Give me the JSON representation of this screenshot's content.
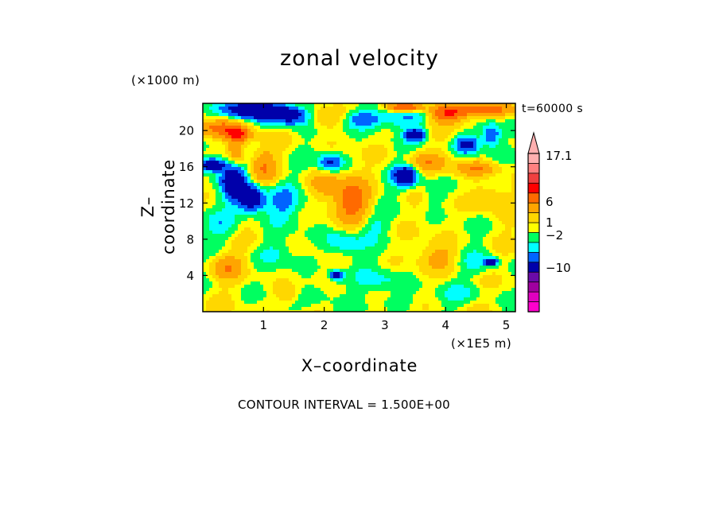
{
  "title": "zonal velocity",
  "y_unit": "(×1000 m)",
  "x_unit": "(×1E5 m)",
  "time_label": "t=60000 s",
  "xlabel": "X–coordinate",
  "ylabel": "Z–coordinate",
  "contour_note": "CONTOUR INTERVAL = 1.500E+00",
  "chart_data": {
    "type": "heatmap",
    "title": "zonal velocity",
    "xlabel": "X–coordinate",
    "ylabel": "Z–coordinate",
    "x_unit": "(×1E5 m)",
    "y_unit": "(×1000 m)",
    "xlim": [
      0,
      5.15
    ],
    "ylim": [
      0,
      23
    ],
    "x_ticks": [
      1,
      2,
      3,
      4,
      5
    ],
    "y_ticks": [
      4,
      8,
      12,
      16,
      20
    ],
    "time": "t=60000 s",
    "contour_interval": "1.500E+00",
    "colorbar_labels": [
      "17.1",
      "6",
      "1",
      "−2",
      "−10"
    ],
    "colorbar_label_values": [
      17.1,
      6,
      1,
      -2,
      -10
    ],
    "colorbar_colors": [
      "#ffb0b0",
      "#ff8080",
      "#f04040",
      "#ff0000",
      "#ff6a00",
      "#ffa500",
      "#ffd700",
      "#ffff00",
      "#00ff60",
      "#00ffff",
      "#0064ff",
      "#0000aa",
      "#6a0aa8",
      "#a000a0",
      "#e000c0",
      "#ff00cc"
    ],
    "colormap": [
      {
        "value": 10,
        "color": "#ff8080"
      },
      {
        "value": 6,
        "color": "#ff0000"
      },
      {
        "value": 4,
        "color": "#ff6a00"
      },
      {
        "value": 2,
        "color": "#ffa500"
      },
      {
        "value": 0.75,
        "color": "#ffd700"
      },
      {
        "value": 0,
        "color": "#ffff00"
      },
      {
        "value": -1,
        "color": "#00ff60"
      },
      {
        "value": -2,
        "color": "#00ffff"
      },
      {
        "value": -3.5,
        "color": "#0064ff"
      },
      {
        "value": -99,
        "color": "#0000aa"
      }
    ],
    "features": [
      {
        "x": 0.8,
        "z": 22.3,
        "sx": 0.45,
        "sz": 0.9,
        "v": -7
      },
      {
        "x": 1.45,
        "z": 21.7,
        "sx": 0.4,
        "sz": 1.2,
        "v": -6
      },
      {
        "x": 0.3,
        "z": 20.2,
        "sx": 0.4,
        "sz": 1.0,
        "v": 4.5
      },
      {
        "x": 0.6,
        "z": 19.5,
        "sx": 0.2,
        "sz": 0.8,
        "v": 5
      },
      {
        "x": 1.9,
        "z": 21.5,
        "sx": 0.35,
        "sz": 1.3,
        "v": 3
      },
      {
        "x": 2.6,
        "z": 21.2,
        "sx": 0.3,
        "sz": 1.0,
        "v": -3
      },
      {
        "x": 3.2,
        "z": 21.4,
        "sx": 0.5,
        "sz": 1.2,
        "v": -2.5
      },
      {
        "x": 3.5,
        "z": 19.5,
        "sx": 0.15,
        "sz": 0.6,
        "v": -6
      },
      {
        "x": 4.0,
        "z": 21.8,
        "sx": 0.3,
        "sz": 1.0,
        "v": 5
      },
      {
        "x": 3.35,
        "z": 22.6,
        "sx": 0.3,
        "sz": 0.5,
        "v": 7
      },
      {
        "x": 4.6,
        "z": 22.3,
        "sx": 0.5,
        "sz": 0.8,
        "v": 5.5
      },
      {
        "x": 4.35,
        "z": 18.5,
        "sx": 0.2,
        "sz": 1.0,
        "v": -4.5
      },
      {
        "x": 4.75,
        "z": 19.5,
        "sx": 0.15,
        "sz": 1.2,
        "v": -4
      },
      {
        "x": 0.15,
        "z": 16.2,
        "sx": 0.2,
        "sz": 0.7,
        "v": -7
      },
      {
        "x": 0.5,
        "z": 14.5,
        "sx": 0.2,
        "sz": 2.0,
        "v": -6
      },
      {
        "x": 0.8,
        "z": 12.5,
        "sx": 0.22,
        "sz": 1.5,
        "v": -7
      },
      {
        "x": 0.55,
        "z": 17.5,
        "sx": 0.15,
        "sz": 1.4,
        "v": 4
      },
      {
        "x": 1.0,
        "z": 16.0,
        "sx": 0.2,
        "sz": 2.0,
        "v": 3
      },
      {
        "x": 1.3,
        "z": 12.0,
        "sx": 0.3,
        "sz": 2.0,
        "v": -2.5
      },
      {
        "x": 2.45,
        "z": 12.3,
        "sx": 0.28,
        "sz": 2.3,
        "v": 5
      },
      {
        "x": 2.0,
        "z": 14.0,
        "sx": 0.25,
        "sz": 1.5,
        "v": 2.5
      },
      {
        "x": 3.35,
        "z": 15.0,
        "sx": 0.2,
        "sz": 1.1,
        "v": -6
      },
      {
        "x": 2.1,
        "z": 16.5,
        "sx": 0.2,
        "sz": 1.0,
        "v": -4
      },
      {
        "x": 3.7,
        "z": 16.5,
        "sx": 0.3,
        "sz": 1.0,
        "v": 3
      },
      {
        "x": 4.5,
        "z": 15.8,
        "sx": 0.35,
        "sz": 0.8,
        "v": 3.5
      },
      {
        "x": 3.8,
        "z": 13.0,
        "sx": 0.2,
        "sz": 1.5,
        "v": -1.2
      },
      {
        "x": 4.7,
        "z": 12.5,
        "sx": 0.3,
        "sz": 1.5,
        "v": 2.2
      },
      {
        "x": 0.3,
        "z": 9.5,
        "sx": 0.3,
        "sz": 1.5,
        "v": -1.5
      },
      {
        "x": 0.4,
        "z": 5.0,
        "sx": 0.25,
        "sz": 1.3,
        "v": 3
      },
      {
        "x": 1.2,
        "z": 6.5,
        "sx": 0.3,
        "sz": 1.5,
        "v": -1.2
      },
      {
        "x": 2.3,
        "z": 7.5,
        "sx": 0.3,
        "sz": 1.5,
        "v": -2.5
      },
      {
        "x": 2.2,
        "z": 4.0,
        "sx": 0.12,
        "sz": 0.6,
        "v": -5
      },
      {
        "x": 1.9,
        "z": 2.0,
        "sx": 0.3,
        "sz": 1.2,
        "v": -1.5
      },
      {
        "x": 3.0,
        "z": 3.5,
        "sx": 0.4,
        "sz": 1.6,
        "v": -1.5
      },
      {
        "x": 2.8,
        "z": 9.5,
        "sx": 0.25,
        "sz": 1.2,
        "v": -1.2
      },
      {
        "x": 3.9,
        "z": 6.0,
        "sx": 0.3,
        "sz": 1.5,
        "v": 2.5
      },
      {
        "x": 4.6,
        "z": 5.5,
        "sx": 0.3,
        "sz": 1.5,
        "v": -1.5
      },
      {
        "x": 4.75,
        "z": 5.5,
        "sx": 0.1,
        "sz": 0.4,
        "v": -6
      },
      {
        "x": 4.3,
        "z": 2.0,
        "sx": 0.4,
        "sz": 1.0,
        "v": -1.2
      },
      {
        "x": 3.2,
        "z": 1.0,
        "sx": 0.4,
        "sz": 0.8,
        "v": -1.0
      },
      {
        "x": 1.4,
        "z": 2.0,
        "sx": 0.2,
        "sz": 1.0,
        "v": 2
      }
    ]
  }
}
